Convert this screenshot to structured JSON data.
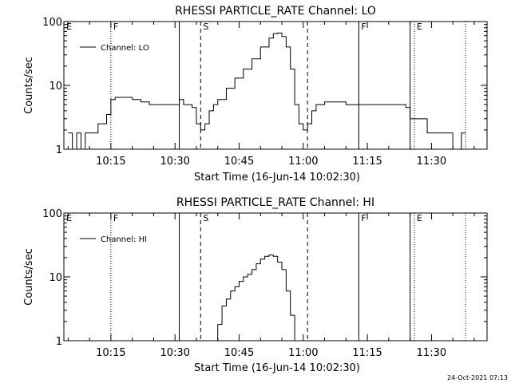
{
  "chart_data": [
    {
      "type": "line",
      "title": "RHESSI PARTICLE_RATE Channel: LO",
      "xlabel": "Start Time (16-Jun-14 10:02:30)",
      "ylabel": "Counts/sec",
      "yscale": "log",
      "ylim": [
        1,
        100
      ],
      "xlim": [
        "10:04",
        "11:43"
      ],
      "xticks": [
        "10:15",
        "10:30",
        "10:45",
        "11:00",
        "11:15",
        "11:30"
      ],
      "yticks": [
        "1",
        "10",
        "100"
      ],
      "grid": false,
      "legend_position": "top-left",
      "series": [
        {
          "name": "Channel: LO",
          "x": [
            "10:05",
            "10:06",
            "10:07",
            "10:08",
            "10:09",
            "10:10",
            "10:11",
            "10:12",
            "10:13",
            "10:14",
            "10:15",
            "10:16",
            "10:18",
            "10:20",
            "10:22",
            "10:24",
            "10:26",
            "10:28",
            "10:30",
            "10:31",
            "10:32",
            "10:33",
            "10:34",
            "10:35",
            "10:36",
            "10:37",
            "10:38",
            "10:39",
            "10:40",
            "10:42",
            "10:44",
            "10:46",
            "10:48",
            "10:50",
            "10:52",
            "10:53",
            "10:54",
            "10:55",
            "10:56",
            "10:57",
            "10:58",
            "10:59",
            "11:00",
            "11:01",
            "11:02",
            "11:03",
            "11:05",
            "11:07",
            "11:10",
            "11:13",
            "11:16",
            "11:19",
            "11:22",
            "11:24",
            "11:25",
            "11:27",
            "11:29",
            "11:31",
            "11:33",
            "11:35",
            "11:37",
            "11:38"
          ],
          "y": [
            1.8,
            1,
            1.8,
            1,
            1.8,
            1.8,
            1.8,
            2.5,
            2.5,
            3.5,
            6,
            6.5,
            6.5,
            6,
            5.5,
            5,
            5,
            5,
            5,
            6,
            5,
            5,
            4.5,
            2.5,
            2,
            2.5,
            4,
            5,
            6,
            9,
            13,
            18,
            26,
            40,
            55,
            65,
            66,
            58,
            40,
            18,
            5,
            2.5,
            2,
            2.5,
            4,
            5,
            5.5,
            5.5,
            5,
            5,
            5,
            5,
            5,
            4.5,
            3,
            3,
            1.8,
            1.8,
            1.8,
            1,
            1.8,
            1.8
          ]
        }
      ],
      "markers": [
        {
          "label": "E",
          "time": "10:04",
          "style": "dotted"
        },
        {
          "label": "F",
          "time": "10:15",
          "style": "dotted"
        },
        {
          "label": "",
          "time": "10:31",
          "style": "solid"
        },
        {
          "label": "S",
          "time": "10:36",
          "style": "dashed"
        },
        {
          "label": "",
          "time": "11:01",
          "style": "dashed"
        },
        {
          "label": "F",
          "time": "11:13",
          "style": "solid"
        },
        {
          "label": "",
          "time": "11:25",
          "style": "solid"
        },
        {
          "label": "E",
          "time": "11:26",
          "style": "dotted"
        },
        {
          "label": "",
          "time": "11:38",
          "style": "dotted"
        }
      ]
    },
    {
      "type": "line",
      "title": "RHESSI PARTICLE_RATE Channel: HI",
      "xlabel": "Start Time (16-Jun-14 10:02:30)",
      "ylabel": "Counts/sec",
      "yscale": "log",
      "ylim": [
        1,
        100
      ],
      "xlim": [
        "10:04",
        "11:43"
      ],
      "xticks": [
        "10:15",
        "10:30",
        "10:45",
        "11:00",
        "11:15",
        "11:30"
      ],
      "yticks": [
        "1",
        "10",
        "100"
      ],
      "grid": false,
      "legend_position": "top-left",
      "series": [
        {
          "name": "Channel: HI",
          "x": [
            "10:39",
            "10:40",
            "10:41",
            "10:42",
            "10:43",
            "10:44",
            "10:45",
            "10:46",
            "10:47",
            "10:48",
            "10:49",
            "10:50",
            "10:51",
            "10:52",
            "10:53",
            "10:54",
            "10:55",
            "10:56",
            "10:57",
            "10:58"
          ],
          "y": [
            1,
            1.8,
            3.5,
            4.5,
            6,
            7,
            8.5,
            10,
            11,
            13,
            16,
            19,
            21,
            22,
            21,
            17,
            13,
            6,
            2.5,
            1
          ]
        }
      ],
      "markers": [
        {
          "label": "E",
          "time": "10:04",
          "style": "dotted"
        },
        {
          "label": "F",
          "time": "10:15",
          "style": "dotted"
        },
        {
          "label": "",
          "time": "10:31",
          "style": "solid"
        },
        {
          "label": "S",
          "time": "10:36",
          "style": "dashed"
        },
        {
          "label": "",
          "time": "11:01",
          "style": "dashed"
        },
        {
          "label": "F",
          "time": "11:13",
          "style": "solid"
        },
        {
          "label": "",
          "time": "11:25",
          "style": "solid"
        },
        {
          "label": "E",
          "time": "11:26",
          "style": "dotted"
        },
        {
          "label": "",
          "time": "11:38",
          "style": "dotted"
        }
      ]
    }
  ],
  "footer": {
    "timestamp": "24-Oct-2021 07:13"
  }
}
